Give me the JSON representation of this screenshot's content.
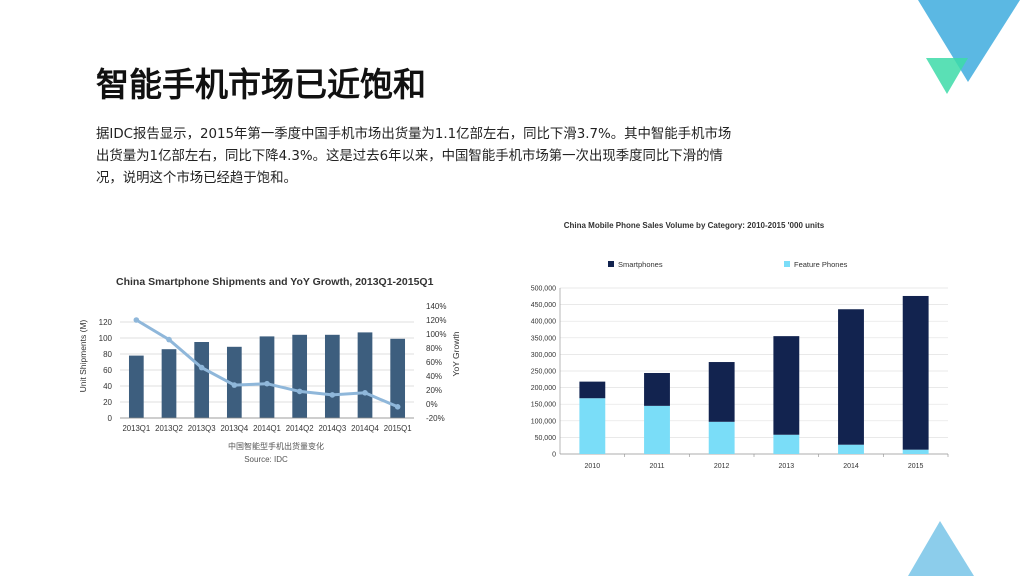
{
  "slide": {
    "title": "智能手机市场已近饱和",
    "paragraph": [
      "据IDC报告显示，2015年第一季度中国手机市场出货量为1.1亿部左右，同比下滑3.7%。其中智能手机市场",
      "出货量为1亿部左右，同比下降4.3%。这是过去6年以来，中国智能手机市场第一次出现季度同比下滑的情",
      "况，说明这个市场已经趋于饱和。"
    ]
  },
  "colors": {
    "deco_blue": "#5BB8E3",
    "deco_green": "#3DDBA8",
    "bar_blue": "#3D5E7E",
    "line_blue": "#8FB7DA",
    "smartphones": "#12234F",
    "feature": "#7ADDF8"
  },
  "chart_data": [
    {
      "type": "bar",
      "title": "China Smartphone Shipments and YoY Growth, 2013Q1-2015Q1",
      "categories": [
        "2013Q1",
        "2013Q2",
        "2013Q3",
        "2013Q4",
        "2014Q1",
        "2014Q2",
        "2014Q3",
        "2014Q4",
        "2015Q1"
      ],
      "series": [
        {
          "name": "Unit Shipments (M)",
          "type": "bar",
          "axis": "left",
          "values": [
            78,
            86,
            95,
            89,
            102,
            104,
            104,
            107,
            99
          ]
        },
        {
          "name": "YoY Growth",
          "type": "line",
          "axis": "right",
          "values": [
            120,
            92,
            52,
            27,
            29,
            18,
            13,
            16,
            -4
          ]
        }
      ],
      "ylabel": "Unit Shipments (M)",
      "y2label": "YoY Growth",
      "ylim": [
        0,
        140
      ],
      "y2lim": [
        -20,
        140
      ],
      "yticks": [
        "0",
        "20",
        "40",
        "60",
        "80",
        "100",
        "120"
      ],
      "y2ticks": [
        "-20%",
        "0%",
        "20%",
        "40%",
        "60%",
        "80%",
        "100%",
        "120%",
        "140%"
      ],
      "xlabel": "中国智能型手机出货量变化",
      "source": "Source: IDC"
    },
    {
      "type": "bar",
      "stacked": true,
      "title": "China Mobile Phone Sales Volume by Category: 2010-2015 '000 units",
      "categories": [
        "2010",
        "2011",
        "2012",
        "2013",
        "2014",
        "2015"
      ],
      "series": [
        {
          "name": "Feature Phones",
          "values": [
            168000,
            145000,
            97000,
            58000,
            28000,
            13000
          ]
        },
        {
          "name": "Smartphones",
          "values": [
            50000,
            99000,
            180000,
            297000,
            408000,
            463000
          ]
        }
      ],
      "legend": [
        "Smartphones",
        "Feature Phones"
      ],
      "legend_position": "top",
      "ylim": [
        0,
        500000
      ],
      "yticks": [
        "0",
        "50,000",
        "100,000",
        "150,000",
        "200,000",
        "250,000",
        "300,000",
        "350,000",
        "400,000",
        "450,000",
        "500,000"
      ]
    }
  ]
}
